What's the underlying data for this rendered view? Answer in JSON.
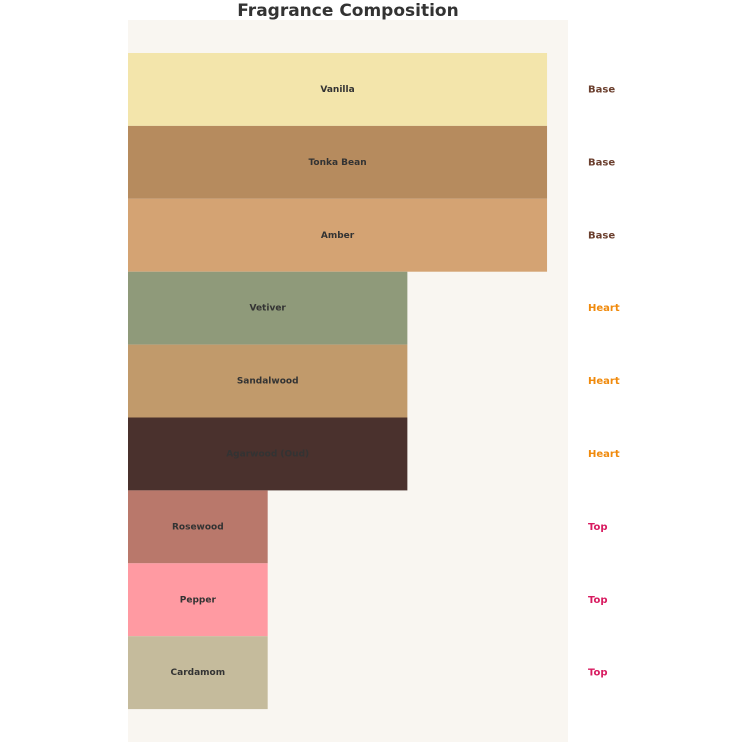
{
  "chart_data": {
    "type": "bar",
    "orientation": "horizontal",
    "title": "Fragrance Composition",
    "categories": [
      "Vanilla",
      "Tonka Bean",
      "Amber",
      "Vetiver",
      "Sandalwood",
      "Agarwood (Oud)",
      "Rosewood",
      "Pepper",
      "Cardamom"
    ],
    "values": [
      3,
      3,
      3,
      2,
      2,
      2,
      1,
      1,
      1
    ],
    "colors": [
      "#f3e5ab",
      "#b68b5e",
      "#d4a373",
      "#8f9a7a",
      "#c19a6b",
      "#4a312d",
      "#b9786b",
      "#ff9aa2",
      "#c5bb9c"
    ],
    "groups": [
      "Base",
      "Base",
      "Base",
      "Heart",
      "Heart",
      "Heart",
      "Top",
      "Top",
      "Top"
    ],
    "group_colors": [
      "#6b3f2e",
      "#6b3f2e",
      "#6b3f2e",
      "#f08a0c",
      "#f08a0c",
      "#f08a0c",
      "#d81b60",
      "#d81b60",
      "#d81b60"
    ],
    "xlim": [
      0,
      3.15
    ],
    "background": "#f9f6f1"
  }
}
